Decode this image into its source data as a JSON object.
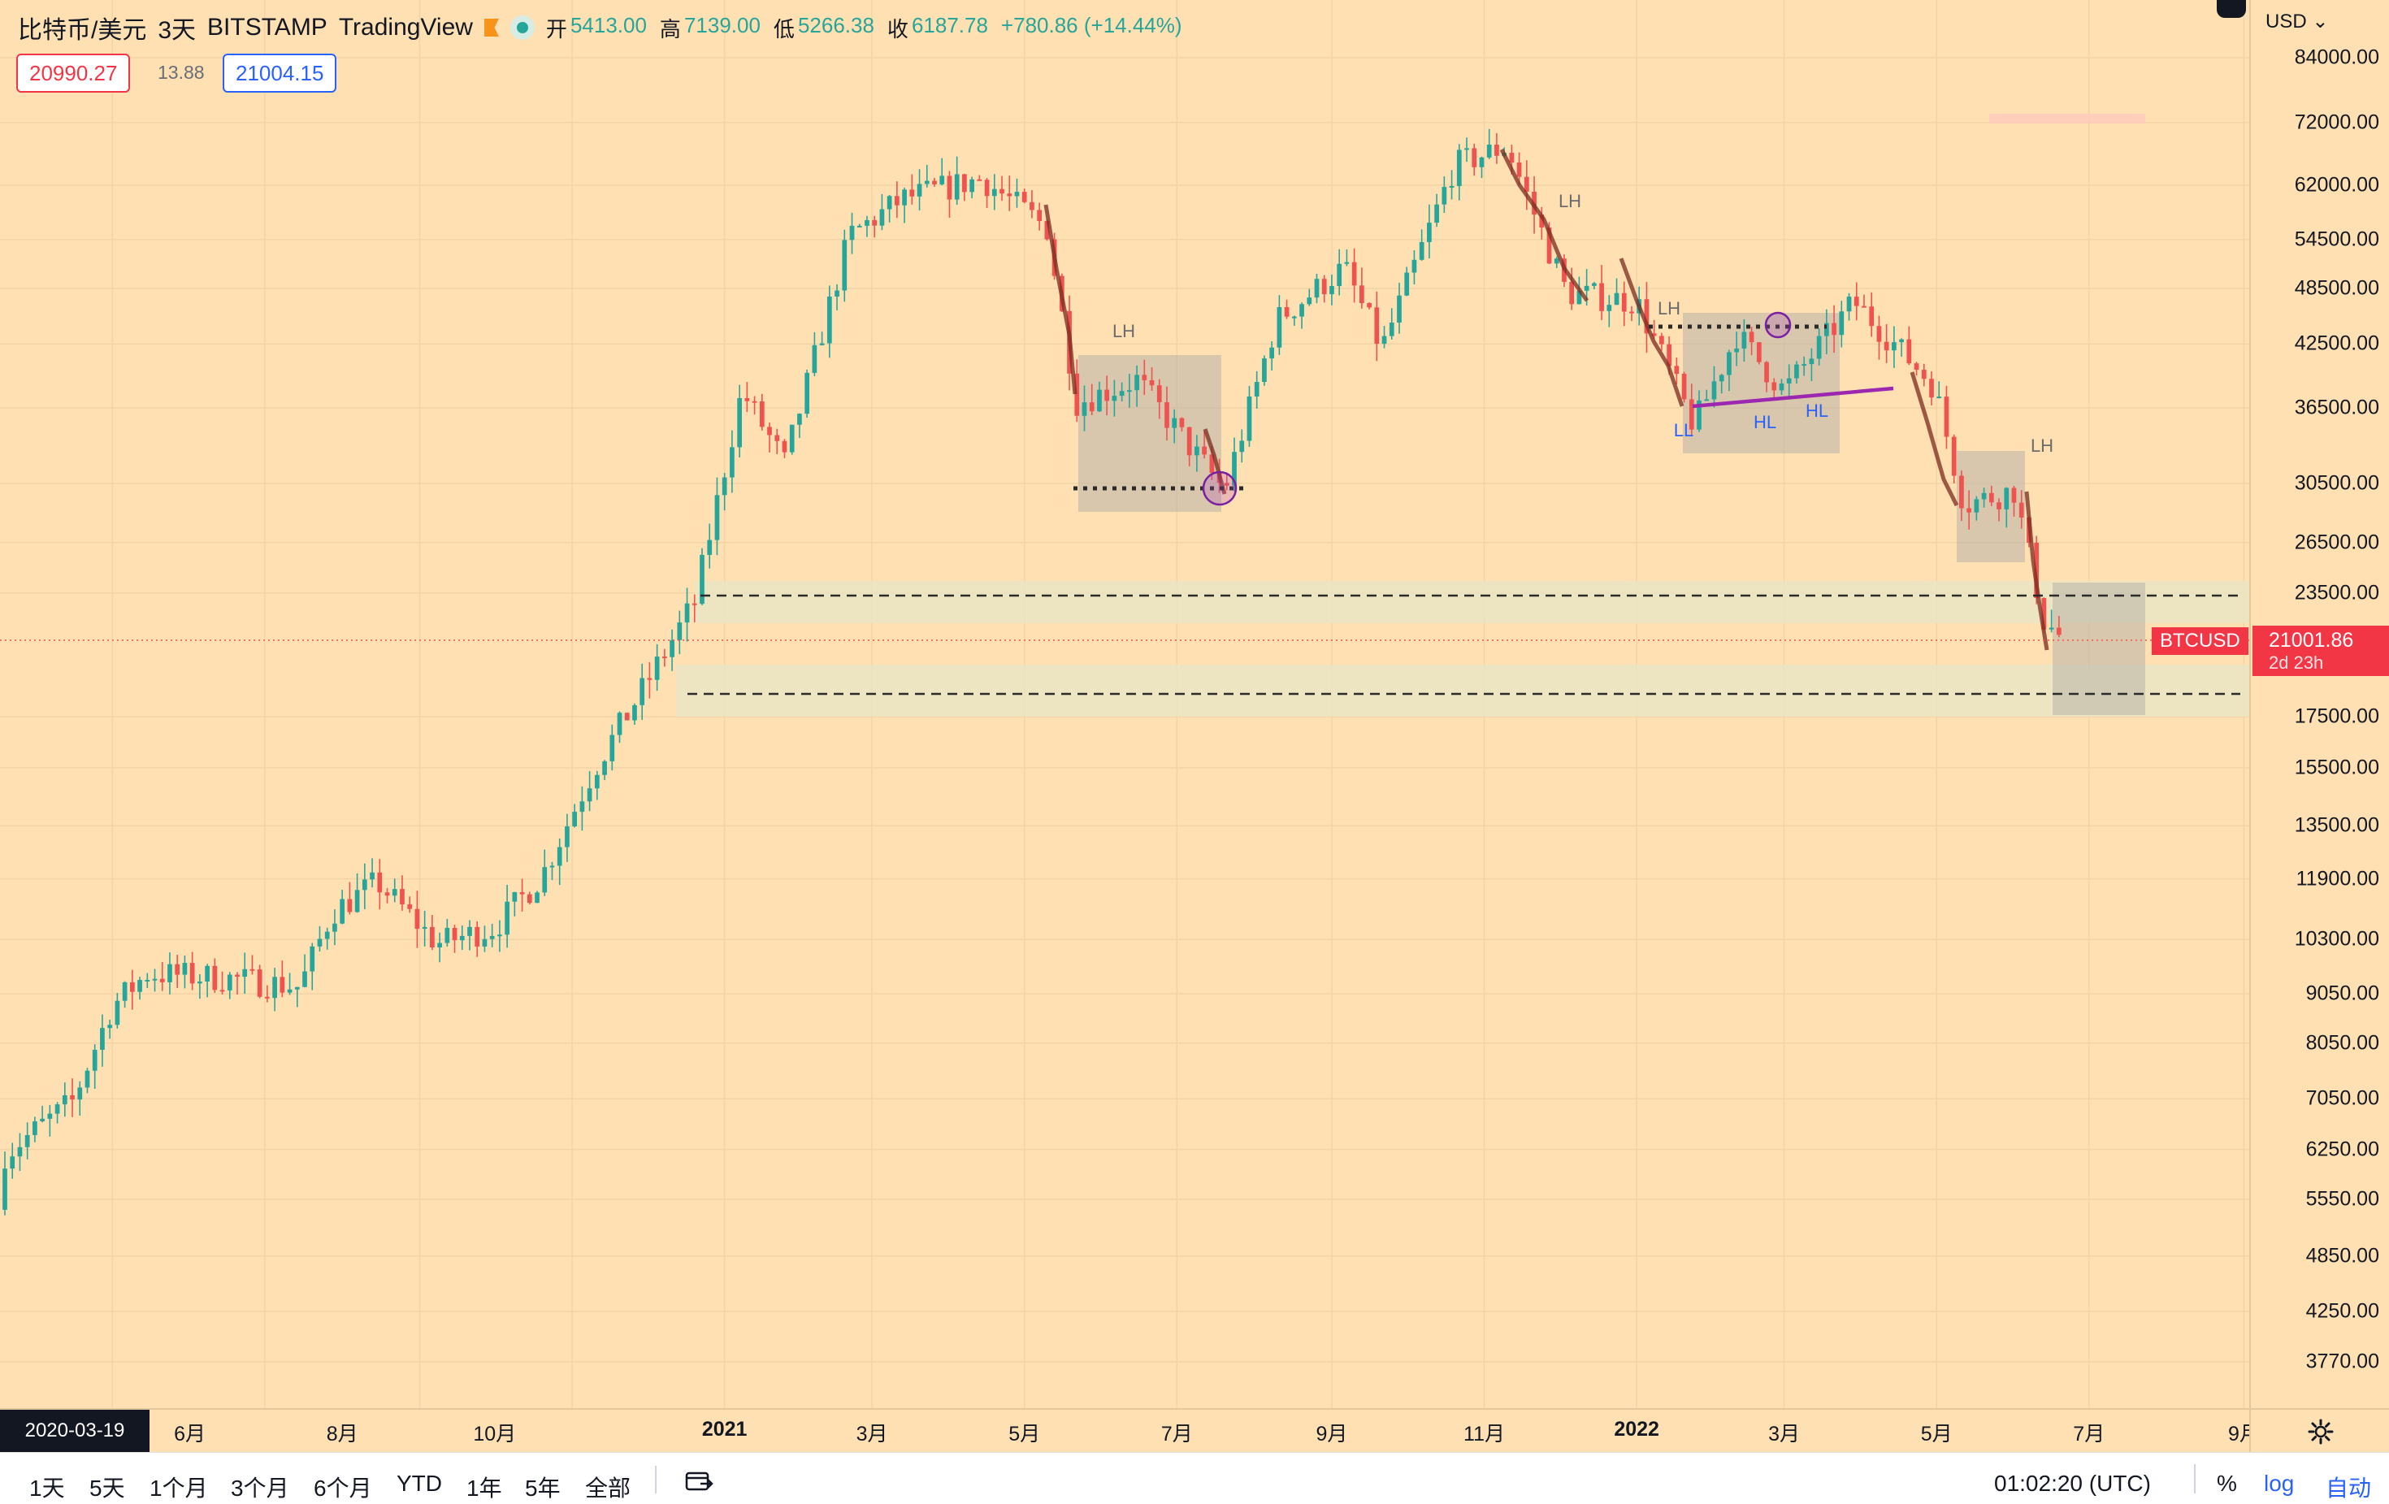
{
  "legend": {
    "symbol": "比特币/美元",
    "interval": "3天",
    "exchange": "BITSTAMP",
    "source": "TradingView",
    "ohlc": [
      {
        "k": "开",
        "v": "5413.00"
      },
      {
        "k": "高",
        "v": "7139.00"
      },
      {
        "k": "低",
        "v": "5266.38"
      },
      {
        "k": "收",
        "v": "6187.78"
      },
      {
        "k": "",
        "v": "+780.86 (+14.44%)"
      }
    ],
    "bid": "20990.27",
    "spread": "13.88",
    "ask": "21004.15"
  },
  "price_axis": {
    "currency": "USD",
    "ticks": [
      "84000.00",
      "72000.00",
      "62000.00",
      "54500.00",
      "48500.00",
      "42500.00",
      "36500.00",
      "30500.00",
      "26500.00",
      "23500.00",
      "17500.00",
      "15500.00",
      "13500.00",
      "11900.00",
      "10300.00",
      "9050.00",
      "8050.00",
      "7050.00",
      "6250.00",
      "5550.00",
      "4850.00",
      "4250.00",
      "3770.00"
    ],
    "last_price": "21001.86",
    "countdown": "2d 23h",
    "symbol_tag": "BTCUSD"
  },
  "time_axis": {
    "cursor_date": "2020-03-19",
    "labels": [
      {
        "t": "6月",
        "bold": false
      },
      {
        "t": "8月",
        "bold": false
      },
      {
        "t": "10月",
        "bold": false
      },
      {
        "t": "2021",
        "bold": true
      },
      {
        "t": "3月",
        "bold": false
      },
      {
        "t": "5月",
        "bold": false
      },
      {
        "t": "7月",
        "bold": false
      },
      {
        "t": "9月",
        "bold": false
      },
      {
        "t": "11月",
        "bold": false
      },
      {
        "t": "2022",
        "bold": true
      },
      {
        "t": "3月",
        "bold": false
      },
      {
        "t": "5月",
        "bold": false
      },
      {
        "t": "7月",
        "bold": false
      },
      {
        "t": "9月",
        "bold": false
      }
    ]
  },
  "annotations": [
    "LH",
    "LH",
    "LH",
    "LL",
    "HL",
    "HL",
    "LH"
  ],
  "toolbar": {
    "ranges": [
      "1天",
      "5天",
      "1个月",
      "3个月",
      "6个月",
      "YTD",
      "1年",
      "5年",
      "全部"
    ],
    "clock": "01:02:20 (UTC)",
    "percent": "%",
    "log": "log",
    "auto": "自动"
  },
  "colors": {
    "up": "#26a69a",
    "down": "#ef5350",
    "background": "#ffe0b3",
    "last_price": "#f23645",
    "accent": "#2962ff"
  },
  "chart_data": {
    "type": "candlestick",
    "scale": "log",
    "interval": "3天",
    "x_range": [
      "2020-03-19",
      "2022-06-21"
    ],
    "y_range": [
      3500,
      90000
    ],
    "last_close": 21001.86,
    "closes_approx": [
      [
        "2020-03-19",
        6188
      ],
      [
        "2020-04-15",
        7000
      ],
      [
        "2020-05-01",
        8800
      ],
      [
        "2020-05-15",
        9500
      ],
      [
        "2020-06-15",
        9400
      ],
      [
        "2020-07-15",
        9200
      ],
      [
        "2020-07-28",
        11000
      ],
      [
        "2020-08-15",
        11800
      ],
      [
        "2020-09-08",
        10200
      ],
      [
        "2020-10-01",
        10600
      ],
      [
        "2020-10-20",
        12000
      ],
      [
        "2020-11-10",
        15500
      ],
      [
        "2020-12-01",
        19000
      ],
      [
        "2020-12-20",
        23000
      ],
      [
        "2021-01-08",
        38000
      ],
      [
        "2021-01-25",
        32000
      ],
      [
        "2021-02-20",
        55000
      ],
      [
        "2021-03-13",
        60000
      ],
      [
        "2021-04-14",
        63000
      ],
      [
        "2021-05-10",
        56000
      ],
      [
        "2021-05-22",
        37000
      ],
      [
        "2021-06-15",
        39000
      ],
      [
        "2021-07-20",
        30000
      ],
      [
        "2021-08-10",
        45000
      ],
      [
        "2021-09-06",
        51000
      ],
      [
        "2021-09-21",
        42000
      ],
      [
        "2021-10-20",
        65000
      ],
      [
        "2021-11-10",
        68000
      ],
      [
        "2021-12-04",
        48000
      ],
      [
        "2022-01-01",
        47000
      ],
      [
        "2022-01-24",
        35000
      ],
      [
        "2022-02-10",
        43500
      ],
      [
        "2022-03-01",
        38000
      ],
      [
        "2022-03-29",
        47000
      ],
      [
        "2022-04-30",
        38500
      ],
      [
        "2022-05-12",
        29000
      ],
      [
        "2022-06-01",
        30000
      ],
      [
        "2022-06-13",
        22000
      ],
      [
        "2022-06-21",
        21000
      ]
    ]
  }
}
